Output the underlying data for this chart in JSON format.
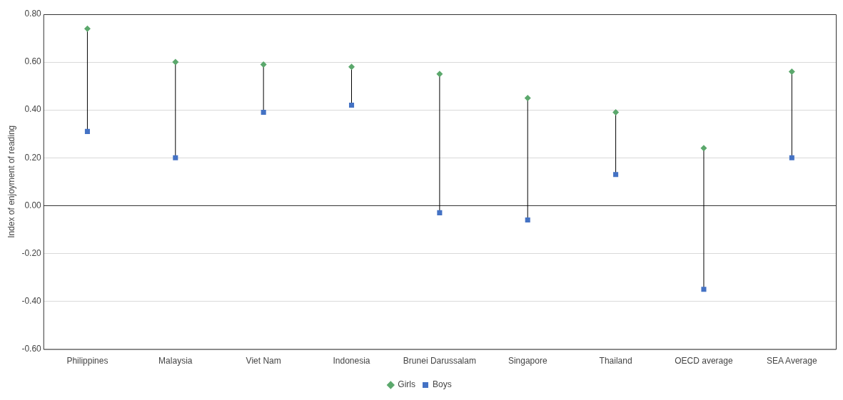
{
  "chart_data": {
    "type": "scatter",
    "ylabel": "Index of enjoyment of reading",
    "categories": [
      "Philippines",
      "Malaysia",
      "Viet Nam",
      "Indonesia",
      "Brunei Darussalam",
      "Singapore",
      "Thailand",
      "OECD average",
      "SEA Average"
    ],
    "series": [
      {
        "name": "Girls",
        "color": "#5ba86c",
        "marker": "diamond",
        "values": [
          0.74,
          0.6,
          0.59,
          0.58,
          0.55,
          0.45,
          0.39,
          0.24,
          0.56
        ]
      },
      {
        "name": "Boys",
        "color": "#4472c4",
        "marker": "square",
        "values": [
          0.31,
          0.2,
          0.39,
          0.42,
          -0.03,
          -0.06,
          0.13,
          -0.35,
          0.2
        ]
      }
    ],
    "ylim": [
      -0.6,
      0.8
    ],
    "yticks": [
      {
        "value": -0.6,
        "label": "-0.60"
      },
      {
        "value": -0.4,
        "label": "-0.40"
      },
      {
        "value": -0.2,
        "label": "-0.20"
      },
      {
        "value": 0,
        "label": "0.00"
      },
      {
        "value": 0.2,
        "label": "0.20"
      },
      {
        "value": 0.4,
        "label": "0.40"
      },
      {
        "value": 0.6,
        "label": "0.60"
      },
      {
        "value": 0.8,
        "label": "0.80"
      }
    ],
    "grid": "y",
    "legend": "bottom"
  }
}
